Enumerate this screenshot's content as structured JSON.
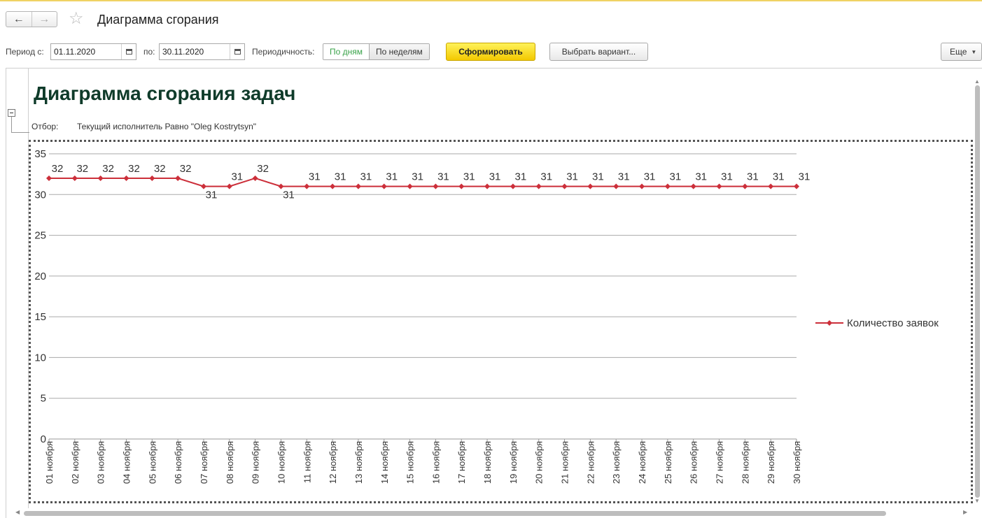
{
  "header": {
    "back_icon": "arrow-left-icon",
    "forward_icon": "arrow-right-icon",
    "favorite_icon": "star-icon",
    "title": "Диаграмма сгорания"
  },
  "toolbar": {
    "period_from_label": "Период с:",
    "period_from_value": "01.11.2020",
    "period_to_label": "по:",
    "period_to_value": "30.11.2020",
    "periodicity_label": "Периодичность:",
    "periodicity_options": [
      "По дням",
      "По неделям"
    ],
    "periodicity_selected": "По дням",
    "generate_label": "Сформировать",
    "choose_variant_label": "Выбрать вариант...",
    "more_label": "Еще"
  },
  "report": {
    "title": "Диаграмма сгорания задач",
    "filter_label": "Отбор:",
    "filter_value": "Текущий исполнитель Равно \"Oleg Kostrytsyn\""
  },
  "colors": {
    "series": "#cc2f3a",
    "accent_yellow": "#f5d000",
    "selected_green": "#3aa34a",
    "report_title": "#0f3b2a"
  },
  "chart_data": {
    "type": "line",
    "title": "",
    "xlabel": "",
    "ylabel": "",
    "ylim": [
      0,
      35
    ],
    "yticks": [
      0,
      5,
      10,
      15,
      20,
      25,
      30,
      35
    ],
    "grid": true,
    "legend_position": "right",
    "categories": [
      "01 ноября",
      "02 ноября",
      "03 ноября",
      "04 ноября",
      "05 ноября",
      "06 ноября",
      "07 ноября",
      "08 ноября",
      "09 ноября",
      "10 ноября",
      "11 ноября",
      "12 ноября",
      "13 ноября",
      "14 ноября",
      "15 ноября",
      "16 ноября",
      "17 ноября",
      "18 ноября",
      "19 ноября",
      "20 ноября",
      "21 ноября",
      "22 ноября",
      "23 ноября",
      "24 ноября",
      "25 ноября",
      "26 ноября",
      "27 ноября",
      "28 ноября",
      "29 ноября",
      "30 ноября"
    ],
    "series": [
      {
        "name": "Количество заявок",
        "values": [
          32,
          32,
          32,
          32,
          32,
          32,
          31,
          31,
          32,
          31,
          31,
          31,
          31,
          31,
          31,
          31,
          31,
          31,
          31,
          31,
          31,
          31,
          31,
          31,
          31,
          31,
          31,
          31,
          31,
          31
        ]
      }
    ]
  }
}
